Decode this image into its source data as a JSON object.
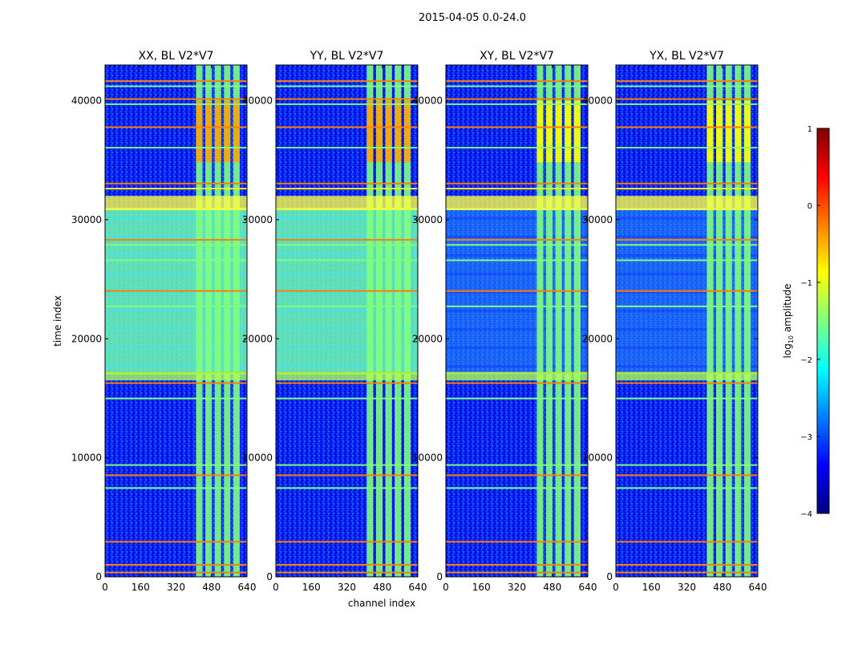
{
  "figure_title": "2015-04-05 0.0-24.0",
  "xlabel": "channel index",
  "ylabel": "time index",
  "colorbar": {
    "label": "log$_{10}$ amplitude",
    "label_main": "log",
    "label_sub": "10",
    "label_rest": " amplitude",
    "ticks": [
      "−4",
      "−3",
      "−2",
      "−1",
      "0",
      "1"
    ],
    "range": [
      -4,
      1
    ],
    "colormap": "jet",
    "colors": [
      "#00007f",
      "#0000ff",
      "#007fff",
      "#00ffff",
      "#7fff7f",
      "#ffff00",
      "#ff7f00",
      "#ff0000",
      "#7f0000"
    ]
  },
  "chart_data": [
    {
      "type": "heatmap",
      "title": "XX, BL V2*V7",
      "xlabel": "",
      "ylabel": "time index",
      "xlim": [
        0,
        640
      ],
      "ylim": [
        0,
        43000
      ],
      "xticks": [
        "0",
        "160",
        "320",
        "480",
        "640"
      ],
      "yticks": [
        "0",
        "10000",
        "20000",
        "30000",
        "40000"
      ],
      "signal_channels": [
        410,
        620
      ],
      "noise_time_ranges": [
        [
          17000,
          31000
        ]
      ]
    },
    {
      "type": "heatmap",
      "title": "YY, BL V2*V7",
      "xlabel": "channel index",
      "ylabel": "",
      "xlim": [
        0,
        640
      ],
      "ylim": [
        0,
        43000
      ],
      "xticks": [
        "0",
        "160",
        "320",
        "480",
        "640"
      ],
      "yticks": [
        "0",
        "10000",
        "20000",
        "30000",
        "40000"
      ],
      "signal_channels": [
        410,
        620
      ],
      "noise_time_ranges": [
        [
          17000,
          31000
        ]
      ]
    },
    {
      "type": "heatmap",
      "title": "XY, BL V2*V7",
      "xlabel": "",
      "ylabel": "",
      "xlim": [
        0,
        640
      ],
      "ylim": [
        0,
        43000
      ],
      "xticks": [
        "0",
        "160",
        "320",
        "480",
        "640"
      ],
      "yticks": [
        "0",
        "10000",
        "20000",
        "30000",
        "40000"
      ],
      "signal_channels": [
        410,
        620
      ],
      "noise_time_ranges": [
        [
          17000,
          31000
        ]
      ]
    },
    {
      "type": "heatmap",
      "title": "YX, BL V2*V7",
      "xlabel": "",
      "ylabel": "",
      "xlim": [
        0,
        640
      ],
      "ylim": [
        0,
        43000
      ],
      "xticks": [
        "0",
        "160",
        "320",
        "480",
        "640"
      ],
      "yticks": [
        "0",
        "10000",
        "20000",
        "30000",
        "40000"
      ],
      "signal_channels": [
        410,
        620
      ],
      "noise_time_ranges": [
        [
          17000,
          31000
        ]
      ]
    }
  ]
}
